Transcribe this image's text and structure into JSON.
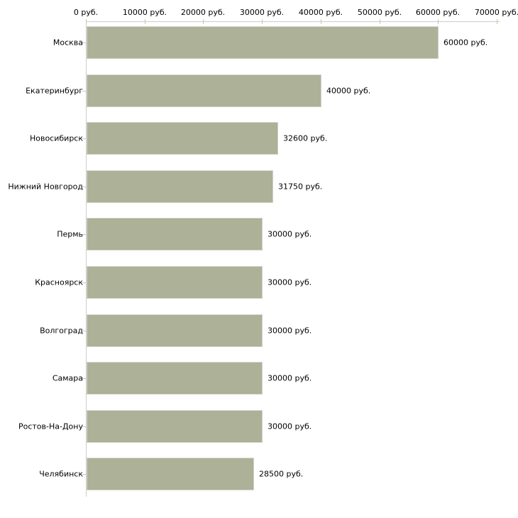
{
  "chart_data": {
    "type": "bar",
    "orientation": "horizontal",
    "title": "",
    "xlabel": "",
    "ylabel": "",
    "categories": [
      "Москва",
      "Екатеринбург",
      "Новосибирск",
      "Нижний Новгород",
      "Пермь",
      "Красноярск",
      "Волгоград",
      "Самара",
      "Ростов-На-Дону",
      "Челябинск"
    ],
    "values": [
      60000,
      40000,
      32600,
      31750,
      30000,
      30000,
      30000,
      30000,
      30000,
      28500
    ],
    "value_labels": [
      "60000 руб.",
      "40000 руб.",
      "32600 руб.",
      "31750 руб.",
      "30000 руб.",
      "30000 руб.",
      "30000 руб.",
      "30000 руб.",
      "30000 руб.",
      "28500 руб."
    ],
    "x_ticks": [
      0,
      10000,
      20000,
      30000,
      40000,
      50000,
      60000,
      70000
    ],
    "x_tick_labels": [
      "0 руб.",
      "10000 руб.",
      "20000 руб.",
      "30000 руб.",
      "40000 руб.",
      "50000 руб.",
      "60000 руб.",
      "70000 руб."
    ],
    "xlim": [
      0,
      70000
    ],
    "grid": "off",
    "legend": "none",
    "axis_position": "top",
    "colors": {
      "bar_fill": "#acb197",
      "bar_border": "#d2d2c8",
      "axis_line": "#cccccc",
      "tick_mark": "#c9c9a3",
      "label_text": "#000000",
      "background": "#ffffff"
    }
  }
}
